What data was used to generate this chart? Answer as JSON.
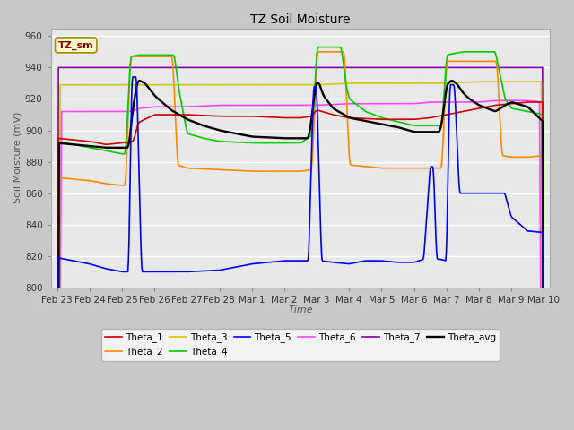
{
  "title": "TZ Soil Moisture",
  "xlabel": "Time",
  "ylabel": "Soil Moisture (mV)",
  "ylim": [
    800,
    965
  ],
  "yticks": [
    800,
    820,
    840,
    860,
    880,
    900,
    920,
    940,
    960
  ],
  "xticklabels": [
    "Feb 23",
    "Feb 24",
    "Feb 25",
    "Feb 26",
    "Feb 27",
    "Feb 28",
    "Mar 1",
    "Mar 2",
    "Mar 3",
    "Mar 4",
    "Mar 5",
    "Mar 6",
    "Mar 7",
    "Mar 8",
    "Mar 9",
    "Mar 10"
  ],
  "line_colors": {
    "theta1": "#cc0000",
    "theta2": "#ff8800",
    "theta3": "#cccc00",
    "theta4": "#00cc00",
    "theta5": "#0000ee",
    "theta6": "#ff44ff",
    "theta7": "#8800aa",
    "theta_avg": "#000000"
  },
  "fig_bg": "#c8c8c8",
  "ax_bg": "#e8e8e8",
  "grid_color": "#ffffff",
  "tz_sm_text_color": "#880000",
  "tz_sm_bg": "#ffffcc",
  "tz_sm_border": "#aa8800"
}
